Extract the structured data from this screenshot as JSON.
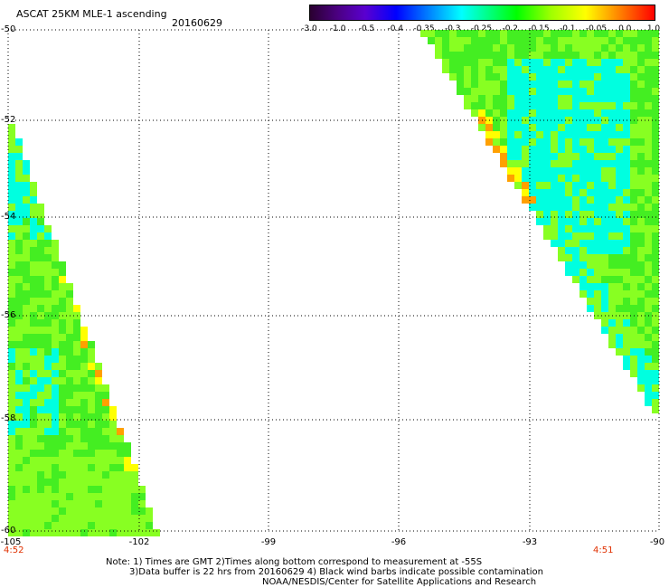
{
  "header": {
    "title": "ASCAT 25KM MLE-1 ascending",
    "date": "20160629"
  },
  "colorbar": {
    "tick_labels": [
      "-3.0",
      "-1.0",
      "-0.5",
      "-0.4",
      "-0.35",
      "-0.3",
      "-0.25",
      "-0.2",
      "-0.15",
      "-0.1",
      "-0.05",
      "0.0",
      "1.0"
    ],
    "colors": [
      "#2a0030",
      "#4b0082",
      "#5a00d0",
      "#0000ff",
      "#0060ff",
      "#00b0ff",
      "#00ffff",
      "#00ff80",
      "#00ff00",
      "#a0ff00",
      "#ffff00",
      "#ff8000",
      "#ff0000"
    ]
  },
  "map": {
    "lat_labels": [
      "-50",
      "-52",
      "-54",
      "-56",
      "-58",
      "-60"
    ],
    "lon_labels": [
      "-105",
      "-102",
      "-99",
      "-96",
      "-93",
      "-90"
    ],
    "time_labels": {
      "left": "4:52",
      "right": "4:51"
    },
    "swath_colors": {
      "green": "#44ee22",
      "lightgreen": "#88ff22",
      "cyan": "#00ffe0",
      "yellow": "#ffff00",
      "orange": "#ffa000"
    }
  },
  "notes": [
    "Note: 1) Times are GMT 2)Times along bottom correspond to measurement at -55S",
    "3)Data buffer is 22 hrs from 20160629 4) Black wind barbs indicate possible contamination",
    "NOAA/NESDIS/Center for Satellite Applications and Research"
  ]
}
